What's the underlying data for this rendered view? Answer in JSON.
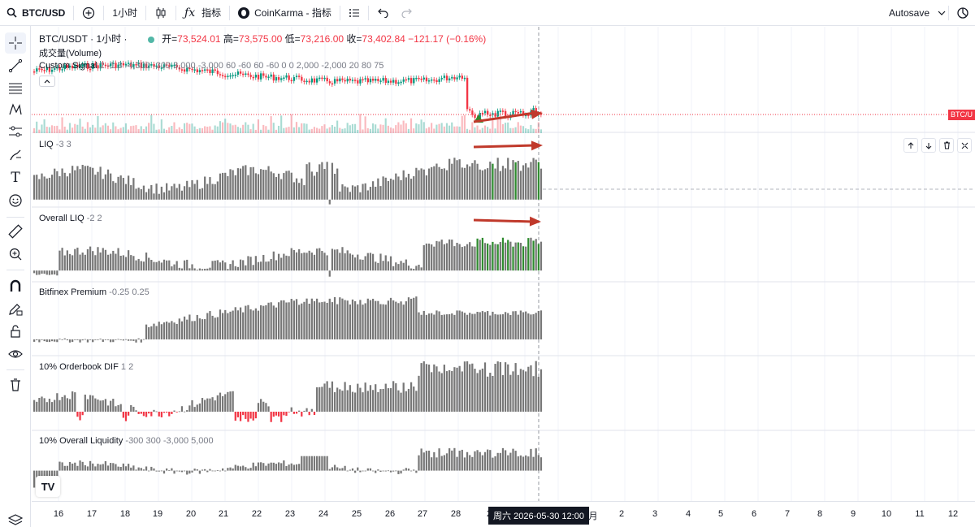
{
  "toolbar": {
    "symbol": "BTC/USD",
    "interval": "1小时",
    "indicators_label": "指标",
    "script_label": "CoinKarma - 指标",
    "autosave_label": "Autosave"
  },
  "main_pane": {
    "title": "BTC/USDT · 1小时 ·",
    "open_label": "开=",
    "open": "73,524.01",
    "high_label": "高=",
    "high": "73,575.00",
    "low_label": "低=",
    "low": "73,216.00",
    "close_label": "收=",
    "close": "73,402.84",
    "change": "−121.17 (−0.16%)",
    "volume_label": "成交量(Volume)",
    "custom_signal_label": "Custom Signal",
    "custom_signal_vals": "2 -1 3 -4,300 -300 3,000 -3,000 60 -60 60 -60 0 0 2,000 -2,000 20 80 75",
    "price_tag": "BTC/U"
  },
  "panes": [
    {
      "name": "LIQ",
      "vals": "-3 3"
    },
    {
      "name": "Overall LIQ",
      "vals": "-2 2"
    },
    {
      "name": "Bitfinex Premium",
      "vals": "-0.25 0.25"
    },
    {
      "name": "10% Orderbook DIF",
      "vals": "1 2"
    },
    {
      "name": "10% Overall Liquidity",
      "vals": "-300 300 -3,000 5,000"
    }
  ],
  "time_axis": {
    "ticks": [
      "16",
      "17",
      "18",
      "19",
      "20",
      "21",
      "22",
      "23",
      "24",
      "25",
      "26",
      "27",
      "28",
      "2",
      "1月",
      "2",
      "3",
      "4",
      "5",
      "6",
      "7",
      "8",
      "9",
      "10",
      "11",
      "12"
    ],
    "cursor_label": "周六 2026-05-30   12:00"
  },
  "colors": {
    "up": "#089981",
    "down": "#f23645",
    "bar_gray": "#777777",
    "bar_green": "#2e8b2e",
    "arrow_red": "#c0392b"
  },
  "icons": [
    "search-icon",
    "plus-circle-icon",
    "candles-icon",
    "fx-icon",
    "list-icon",
    "undo-icon",
    "redo-icon",
    "chevron-down-icon",
    "camera-icon",
    "crosshair-icon",
    "trendline-icon",
    "fib-icon",
    "pattern-icon",
    "settings-lines-icon",
    "brush-icon",
    "text-icon",
    "emoji-icon",
    "ruler-icon",
    "zoom-icon",
    "magnet-icon",
    "pencil-lock-icon",
    "lock-icon",
    "eye-icon",
    "trash-icon",
    "layers-icon"
  ]
}
